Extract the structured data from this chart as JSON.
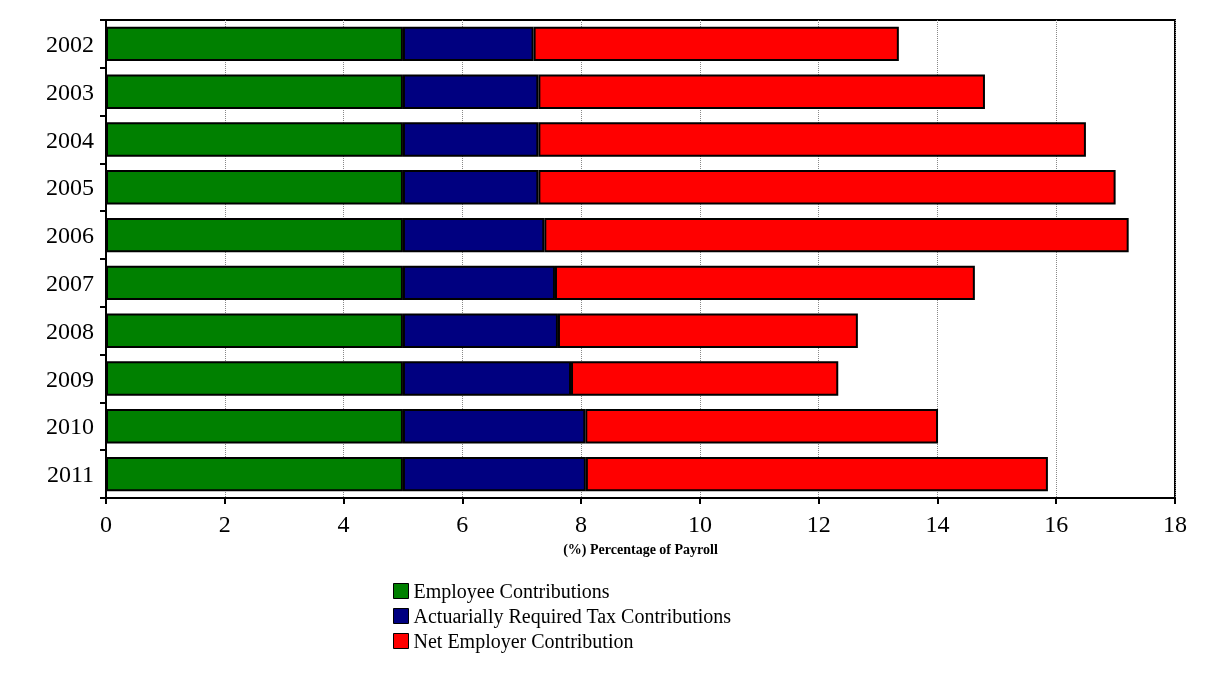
{
  "chart_data": {
    "type": "bar",
    "orientation": "horizontal",
    "stacked": true,
    "xlabel": "(%) Percentage of Payroll",
    "categories": [
      "2002",
      "2003",
      "2004",
      "2005",
      "2006",
      "2007",
      "2008",
      "2009",
      "2010",
      "2011"
    ],
    "series": [
      {
        "name": "Employee Contributions",
        "color": "#008000",
        "values": [
          5,
          5,
          5,
          5,
          5,
          5,
          5,
          5,
          5,
          5
        ]
      },
      {
        "name": "Actuarially Required Tax Contributions",
        "color": "#000080",
        "values": [
          2.2,
          2.28,
          2.28,
          2.28,
          2.38,
          2.56,
          2.61,
          2.83,
          3.07,
          3.08
        ]
      },
      {
        "name": "Net Employer Contribution",
        "color": "#ff0000",
        "values": [
          6.15,
          7.52,
          9.22,
          9.72,
          9.84,
          7.07,
          5.05,
          4.5,
          5.94,
          7.78
        ]
      }
    ],
    "xlim": [
      0,
      18
    ],
    "xticks": [
      0,
      2,
      4,
      6,
      8,
      10,
      12,
      14,
      16,
      18
    ],
    "grid": "x",
    "legend": "bottom"
  }
}
